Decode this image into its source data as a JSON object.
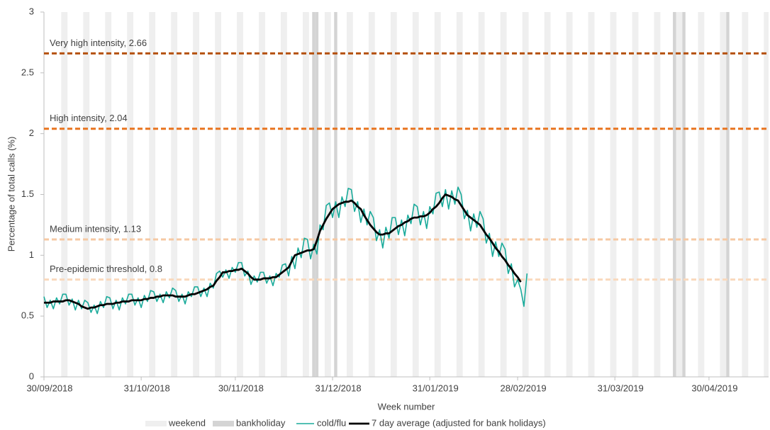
{
  "chart_data": {
    "type": "line",
    "x_label": "Week number",
    "y_label": "Percentage of total calls (%)",
    "xlim": [
      "30/09/2018",
      "19/05/2019"
    ],
    "xticks": [
      "30/09/2018",
      "31/10/2018",
      "30/11/2018",
      "31/12/2018",
      "31/01/2019",
      "28/02/2019",
      "31/03/2019",
      "30/04/2019"
    ],
    "ylim": [
      0,
      3
    ],
    "yticks": [
      0,
      0.5,
      1,
      1.5,
      2,
      2.5,
      3
    ],
    "shading": [
      {
        "name": "weekend",
        "color": "#efefef"
      },
      {
        "name": "bankholiday",
        "color": "#d4d4d4"
      }
    ],
    "bank_holidays": [
      "25/12/2018",
      "26/12/2018",
      "01/01/2019",
      "19/04/2019",
      "22/04/2019",
      "06/05/2019"
    ],
    "thresholds": [
      {
        "label": "Very high intensity, 2.66",
        "value": 2.66,
        "color": "#b5520f"
      },
      {
        "label": "High intensity, 2.04",
        "value": 2.04,
        "color": "#e8741f"
      },
      {
        "label": "Medium intensity, 1.13",
        "value": 1.13,
        "color": "#f6c9a3"
      },
      {
        "label": "Pre-epidemic threshold, 0.8",
        "value": 0.8,
        "color": "#f9d9bd"
      }
    ],
    "x": [
      "30/09/2018",
      "01/10/2018",
      "02/10/2018",
      "03/10/2018",
      "04/10/2018",
      "05/10/2018",
      "06/10/2018",
      "07/10/2018",
      "08/10/2018",
      "09/10/2018",
      "10/10/2018",
      "11/10/2018",
      "12/10/2018",
      "13/10/2018",
      "14/10/2018",
      "15/10/2018",
      "16/10/2018",
      "17/10/2018",
      "18/10/2018",
      "19/10/2018",
      "20/10/2018",
      "21/10/2018",
      "22/10/2018",
      "23/10/2018",
      "24/10/2018",
      "25/10/2018",
      "26/10/2018",
      "27/10/2018",
      "28/10/2018",
      "29/10/2018",
      "30/10/2018",
      "31/10/2018",
      "01/11/2018",
      "02/11/2018",
      "03/11/2018",
      "04/11/2018",
      "05/11/2018",
      "06/11/2018",
      "07/11/2018",
      "08/11/2018",
      "09/11/2018",
      "10/11/2018",
      "11/11/2018",
      "12/11/2018",
      "13/11/2018",
      "14/11/2018",
      "15/11/2018",
      "16/11/2018",
      "17/11/2018",
      "18/11/2018",
      "19/11/2018",
      "20/11/2018",
      "21/11/2018",
      "22/11/2018",
      "23/11/2018",
      "24/11/2018",
      "25/11/2018",
      "26/11/2018",
      "27/11/2018",
      "28/11/2018",
      "29/11/2018",
      "30/11/2018",
      "01/12/2018",
      "02/12/2018",
      "03/12/2018",
      "04/12/2018",
      "05/12/2018",
      "06/12/2018",
      "07/12/2018",
      "08/12/2018",
      "09/12/2018",
      "10/12/2018",
      "11/12/2018",
      "12/12/2018",
      "13/12/2018",
      "14/12/2018",
      "15/12/2018",
      "16/12/2018",
      "17/12/2018",
      "18/12/2018",
      "19/12/2018",
      "20/12/2018",
      "21/12/2018",
      "22/12/2018",
      "23/12/2018",
      "24/12/2018",
      "25/12/2018",
      "26/12/2018",
      "27/12/2018",
      "28/12/2018",
      "29/12/2018",
      "30/12/2018",
      "31/12/2018",
      "01/01/2019",
      "02/01/2019",
      "03/01/2019",
      "04/01/2019",
      "05/01/2019",
      "06/01/2019",
      "07/01/2019",
      "08/01/2019",
      "09/01/2019",
      "10/01/2019",
      "11/01/2019",
      "12/01/2019",
      "13/01/2019",
      "14/01/2019",
      "15/01/2019",
      "16/01/2019",
      "17/01/2019",
      "18/01/2019",
      "19/01/2019",
      "20/01/2019",
      "21/01/2019",
      "22/01/2019",
      "23/01/2019",
      "24/01/2019",
      "25/01/2019",
      "26/01/2019",
      "27/01/2019",
      "28/01/2019",
      "29/01/2019",
      "30/01/2019",
      "31/01/2019",
      "01/02/2019",
      "02/02/2019",
      "03/02/2019",
      "04/02/2019",
      "05/02/2019",
      "06/02/2019",
      "07/02/2019",
      "08/02/2019",
      "09/02/2019",
      "10/02/2019",
      "11/02/2019",
      "12/02/2019",
      "13/02/2019",
      "14/02/2019",
      "15/02/2019",
      "16/02/2019",
      "17/02/2019",
      "18/02/2019",
      "19/02/2019",
      "20/02/2019",
      "21/02/2019",
      "22/02/2019",
      "23/02/2019",
      "24/02/2019",
      "25/02/2019",
      "26/02/2019",
      "27/02/2019",
      "28/02/2019",
      "01/03/2019",
      "02/03/2019",
      "03/03/2019"
    ],
    "series": [
      {
        "name": "cold/flu",
        "color": "#1aab9b",
        "width": 1.6,
        "values": [
          0.66,
          0.57,
          0.63,
          0.56,
          0.65,
          0.6,
          0.68,
          0.68,
          0.59,
          0.64,
          0.55,
          0.63,
          0.56,
          0.63,
          0.61,
          0.53,
          0.59,
          0.52,
          0.62,
          0.57,
          0.66,
          0.65,
          0.56,
          0.63,
          0.55,
          0.65,
          0.6,
          0.68,
          0.68,
          0.59,
          0.65,
          0.57,
          0.67,
          0.62,
          0.71,
          0.7,
          0.62,
          0.68,
          0.61,
          0.7,
          0.65,
          0.73,
          0.71,
          0.62,
          0.68,
          0.6,
          0.7,
          0.66,
          0.74,
          0.74,
          0.66,
          0.73,
          0.66,
          0.77,
          0.73,
          0.85,
          0.87,
          0.82,
          0.88,
          0.81,
          0.9,
          0.86,
          0.94,
          0.94,
          0.83,
          0.87,
          0.76,
          0.83,
          0.78,
          0.86,
          0.86,
          0.77,
          0.83,
          0.75,
          0.85,
          0.82,
          0.92,
          0.93,
          0.83,
          0.99,
          0.89,
          1.06,
          0.98,
          1.14,
          1.13,
          0.97,
          1.09,
          1.01,
          1.25,
          1.21,
          1.41,
          1.43,
          1.31,
          1.44,
          1.31,
          1.48,
          1.4,
          1.55,
          1.54,
          1.36,
          1.44,
          1.27,
          1.38,
          1.25,
          1.36,
          1.31,
          1.12,
          1.21,
          1.06,
          1.23,
          1.14,
          1.31,
          1.31,
          1.17,
          1.29,
          1.16,
          1.33,
          1.26,
          1.42,
          1.4,
          1.25,
          1.36,
          1.22,
          1.4,
          1.34,
          1.51,
          1.52,
          1.4,
          1.54,
          1.38,
          1.53,
          1.42,
          1.56,
          1.5,
          1.3,
          1.37,
          1.2,
          1.34,
          1.23,
          1.36,
          1.3,
          1.1,
          1.18,
          0.99,
          1.11,
          0.99,
          1.1,
          1.05,
          0.85,
          0.93,
          0.74,
          0.8,
          0.72,
          0.58,
          0.85
        ]
      },
      {
        "name": "7 day average (adjusted for bank holidays)",
        "color": "#000000",
        "width": 2.8,
        "values": [
          0.61,
          0.61,
          0.61,
          0.62,
          0.62,
          0.62,
          0.62,
          0.63,
          0.63,
          0.62,
          0.61,
          0.6,
          0.58,
          0.57,
          0.56,
          0.57,
          0.57,
          0.58,
          0.59,
          0.59,
          0.6,
          0.6,
          0.6,
          0.61,
          0.61,
          0.62,
          0.62,
          0.62,
          0.63,
          0.63,
          0.63,
          0.63,
          0.64,
          0.64,
          0.65,
          0.65,
          0.66,
          0.66,
          0.67,
          0.67,
          0.67,
          0.67,
          0.66,
          0.66,
          0.66,
          0.66,
          0.67,
          0.68,
          0.68,
          0.69,
          0.7,
          0.71,
          0.72,
          0.74,
          0.75,
          0.79,
          0.82,
          0.86,
          0.86,
          0.87,
          0.87,
          0.88,
          0.88,
          0.89,
          0.87,
          0.85,
          0.82,
          0.8,
          0.8,
          0.8,
          0.81,
          0.81,
          0.81,
          0.82,
          0.82,
          0.84,
          0.86,
          0.88,
          0.9,
          0.95,
          1.0,
          1.01,
          1.02,
          1.03,
          1.04,
          1.04,
          1.05,
          1.12,
          1.2,
          1.25,
          1.3,
          1.34,
          1.38,
          1.4,
          1.42,
          1.43,
          1.44,
          1.44,
          1.45,
          1.43,
          1.4,
          1.38,
          1.33,
          1.29,
          1.25,
          1.22,
          1.19,
          1.17,
          1.17,
          1.18,
          1.18,
          1.2,
          1.22,
          1.24,
          1.25,
          1.27,
          1.28,
          1.3,
          1.31,
          1.31,
          1.32,
          1.32,
          1.33,
          1.35,
          1.38,
          1.4,
          1.43,
          1.47,
          1.5,
          1.49,
          1.48,
          1.46,
          1.45,
          1.41,
          1.37,
          1.33,
          1.31,
          1.29,
          1.27,
          1.25,
          1.21,
          1.17,
          1.14,
          1.1,
          1.06,
          1.03,
          0.99,
          0.96,
          0.92,
          0.89,
          0.85,
          0.82,
          0.78,
          null,
          null
        ]
      }
    ]
  }
}
